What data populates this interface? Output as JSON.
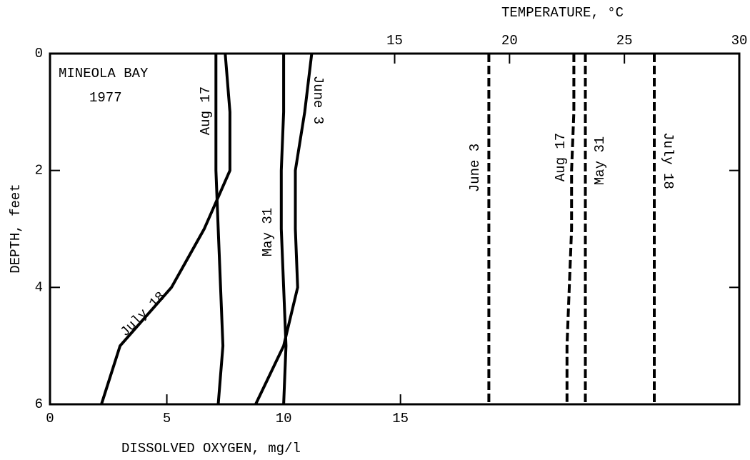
{
  "chart_data": {
    "type": "line",
    "annotation": [
      "MINEOLA BAY",
      "1977"
    ],
    "x_label": "DISSOLVED OXYGEN, mg/l",
    "x2_label": "TEMPERATURE, °C",
    "y_label": "DEPTH, feet",
    "xlim": [
      0,
      29.5
    ],
    "xticks": [
      0,
      5,
      10,
      15
    ],
    "x2lim": [
      0,
      30
    ],
    "x2ticks": [
      15,
      20,
      25,
      30
    ],
    "ylim": [
      6,
      0
    ],
    "yticks": [
      0,
      2,
      4,
      6
    ],
    "y": [
      0,
      1,
      2,
      3,
      4,
      5,
      6
    ],
    "color": "#000000",
    "series": [
      {
        "name": "Aug 17",
        "axis": "x",
        "values": [
          7.1,
          7.1,
          7.1,
          7.2,
          7.3,
          7.4,
          7.2
        ]
      },
      {
        "name": "July 18",
        "axis": "x",
        "values": [
          7.5,
          7.7,
          7.7,
          6.6,
          5.2,
          3.0,
          2.2
        ]
      },
      {
        "name": "May 31",
        "axis": "x",
        "values": [
          10.0,
          10.0,
          9.9,
          9.9,
          10.0,
          10.1,
          10.0
        ]
      },
      {
        "name": "June 3",
        "axis": "x",
        "values": [
          11.2,
          10.9,
          10.5,
          10.5,
          10.6,
          10.0,
          8.8
        ]
      },
      {
        "name": "June 3",
        "axis": "x2",
        "values": [
          19.1,
          19.1,
          19.1,
          19.1,
          19.1,
          19.1,
          19.1
        ]
      },
      {
        "name": "Aug 17",
        "axis": "x2",
        "values": [
          22.8,
          22.8,
          22.7,
          22.7,
          22.6,
          22.5,
          22.5
        ]
      },
      {
        "name": "May 31",
        "axis": "x2",
        "values": [
          23.3,
          23.3,
          23.3,
          23.3,
          23.3,
          23.3,
          23.3
        ]
      },
      {
        "name": "July 18",
        "axis": "x2",
        "values": [
          26.3,
          26.3,
          26.3,
          26.3,
          26.3,
          26.3,
          26.3
        ]
      }
    ]
  }
}
